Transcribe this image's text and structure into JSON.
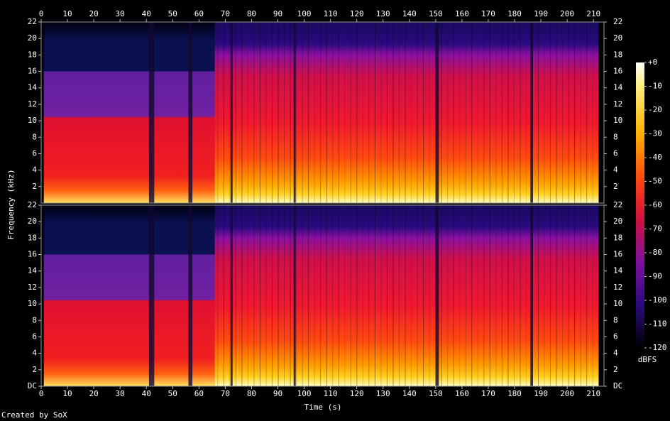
{
  "chart_data": {
    "type": "spectrogram",
    "x_label": "Time (s)",
    "y_label": "Frequency (kHz)",
    "xlim": [
      0,
      214
    ],
    "xticks": [
      0,
      10,
      20,
      30,
      40,
      50,
      60,
      70,
      80,
      90,
      100,
      110,
      120,
      130,
      140,
      150,
      160,
      170,
      180,
      190,
      200,
      210
    ],
    "channels": [
      {
        "ylim": [
          0,
          22
        ],
        "yticks": [
          2,
          4,
          6,
          8,
          10,
          12,
          14,
          16,
          18,
          20,
          22
        ]
      },
      {
        "ylim": [
          0,
          22
        ],
        "yticks": [
          {
            "value": 0,
            "label": "DC"
          },
          2,
          4,
          6,
          8,
          10,
          12,
          14,
          16,
          18,
          20,
          22
        ]
      }
    ],
    "colorbar": {
      "label": "dBFS",
      "lim": [
        -120,
        0
      ],
      "ticks": [
        {
          "value": 0,
          "label": "+0"
        },
        -10,
        -20,
        -30,
        -40,
        -50,
        -60,
        -70,
        -80,
        -90,
        -100,
        -110,
        -120
      ]
    },
    "footer": "Created by SoX"
  }
}
